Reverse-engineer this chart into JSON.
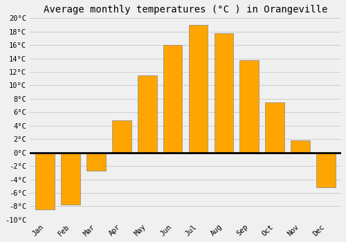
{
  "title": "Average monthly temperatures (°C ) in Orangeville",
  "months": [
    "Jan",
    "Feb",
    "Mar",
    "Apr",
    "May",
    "Jun",
    "Jul",
    "Aug",
    "Sep",
    "Oct",
    "Nov",
    "Dec"
  ],
  "values": [
    -8.5,
    -7.8,
    -2.7,
    4.8,
    11.5,
    16.0,
    19.0,
    17.8,
    13.8,
    7.5,
    1.8,
    -5.2
  ],
  "bar_color": "#FFA500",
  "bar_edge_color": "#888888",
  "ylim": [
    -10,
    20
  ],
  "yticks": [
    -10,
    -8,
    -6,
    -4,
    -2,
    0,
    2,
    4,
    6,
    8,
    10,
    12,
    14,
    16,
    18,
    20
  ],
  "background_color": "#f0f0f0",
  "grid_color": "#cccccc",
  "title_fontsize": 10,
  "tick_fontsize": 7.5,
  "zero_line_color": "#000000",
  "bar_width": 0.75
}
